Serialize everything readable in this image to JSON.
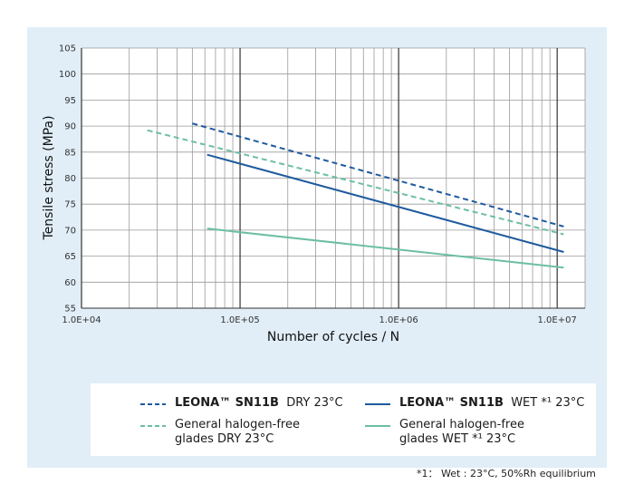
{
  "chart_data": {
    "type": "line",
    "x_scale": "log",
    "xlabel": "Number of cycles / N",
    "ylabel": "Tensile stress (MPa)",
    "xlim": [
      10000,
      15000000
    ],
    "ylim": [
      55,
      105
    ],
    "x_ticks": [
      {
        "value": 10000,
        "label": "1.0E+04"
      },
      {
        "value": 100000,
        "label": "1.0E+05"
      },
      {
        "value": 1000000,
        "label": "1.0E+06"
      },
      {
        "value": 10000000,
        "label": "1.0E+07"
      }
    ],
    "y_ticks": [
      55,
      60,
      65,
      70,
      75,
      80,
      85,
      90,
      95,
      100,
      105
    ],
    "grid": true,
    "legend_position": "bottom",
    "series": [
      {
        "name": "LEONA™ SN11B DRY 23°C",
        "color": "#1f5a9e",
        "dash": true,
        "x": [
          50000,
          11000000
        ],
        "y": [
          90.5,
          70.7
        ]
      },
      {
        "name": "General halogen-free glades DRY 23°C",
        "color": "#6cbfa3",
        "dash": true,
        "x": [
          26000,
          11000000
        ],
        "y": [
          89.2,
          69.2
        ]
      },
      {
        "name": "LEONA™ SN11B WET *1 23°C",
        "color": "#1f5a9e",
        "dash": false,
        "x": [
          62000,
          11000000
        ],
        "y": [
          84.5,
          65.8
        ]
      },
      {
        "name": "General halogen-free glades WET *1 23°C",
        "color": "#6cbfa3",
        "dash": false,
        "x": [
          62000,
          11000000
        ],
        "y": [
          70.3,
          62.8
        ]
      }
    ]
  },
  "legend": {
    "item1": {
      "brand": "LEONA™ SN11B",
      "cond": "DRY 23°C"
    },
    "item2": {
      "brand": "LEONA™ SN11B",
      "cond": "WET *¹ 23°C"
    },
    "item3": {
      "line1": "General halogen-free",
      "line2": "glades DRY 23°C"
    },
    "item4": {
      "line1": "General halogen-free",
      "line2": "glades WET *¹ 23°C"
    }
  },
  "footnote": "*1：  Wet : 23°C, 50%Rh equilibrium"
}
